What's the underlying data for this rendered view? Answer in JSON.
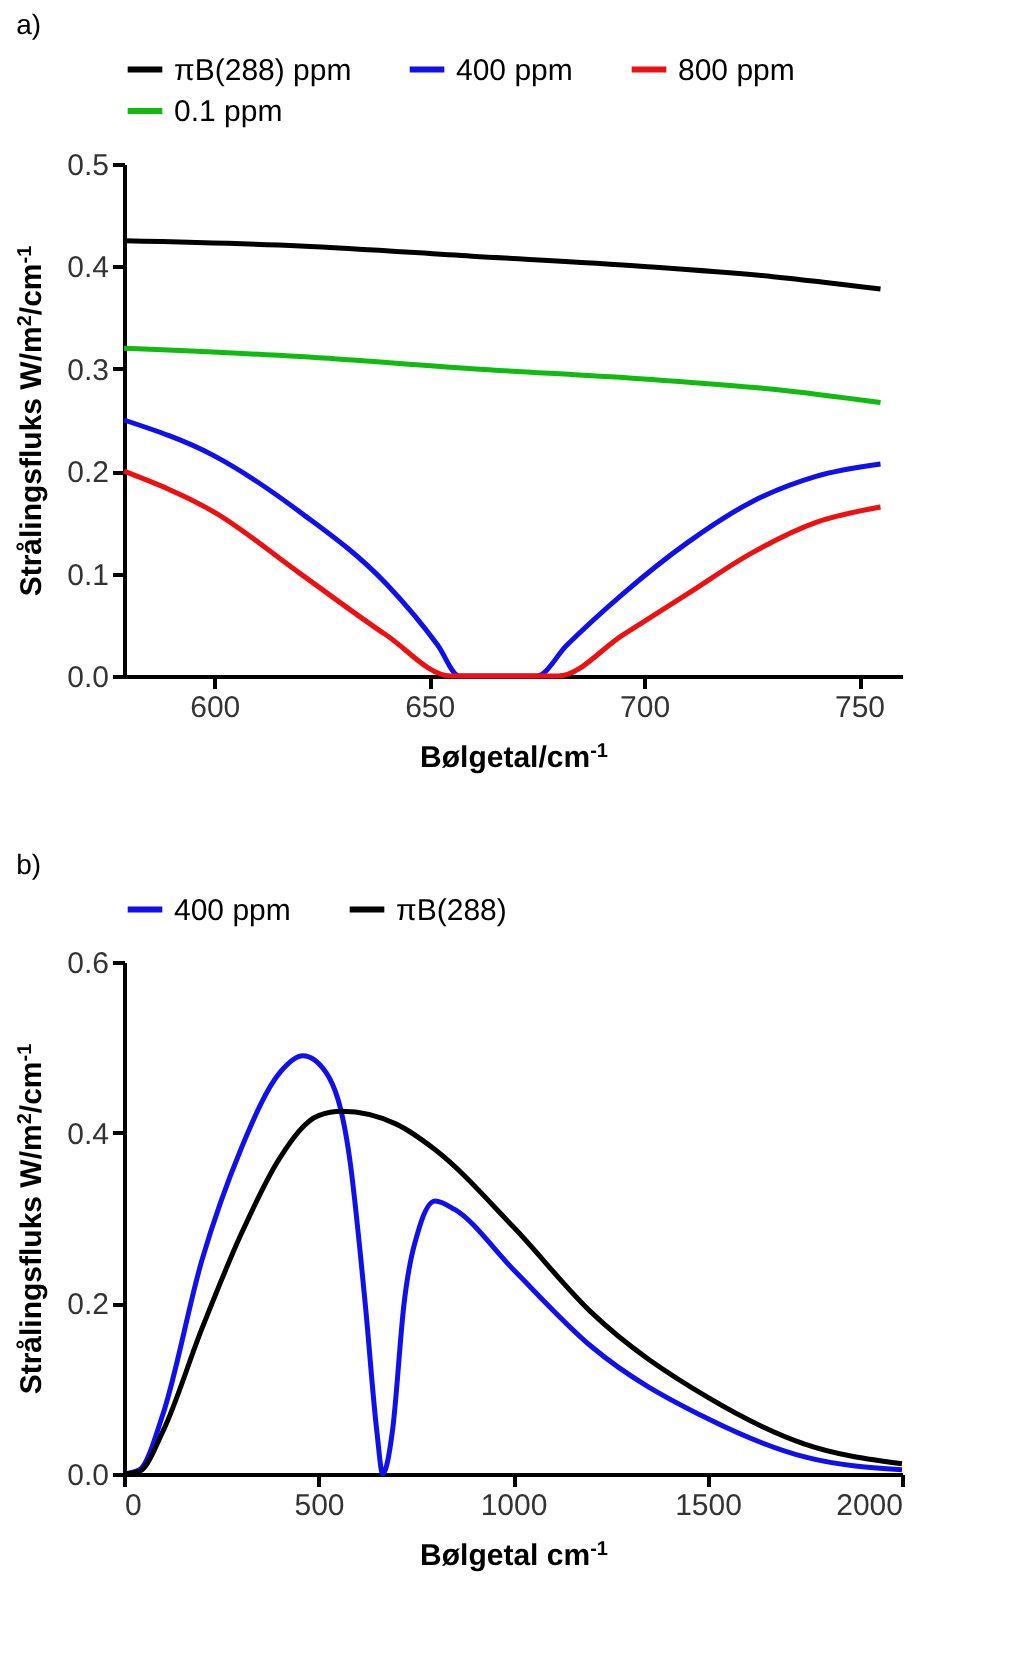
{
  "chart_data": [
    {
      "type": "line",
      "title": "a)",
      "xlabel": "Bølgetal/cm$^{-1}$",
      "ylabel": "Strålingsfluks  W/m$^{2}$/cm$^{-1}$",
      "xlim": [
        579,
        760
      ],
      "xticks": [
        600,
        650,
        700,
        750
      ],
      "ylim": [
        0,
        0.5
      ],
      "yticks": [
        {
          "value": 0,
          "label": "0.0"
        },
        0.1,
        0.2,
        0.3,
        0.4,
        0.5
      ],
      "legend": "top",
      "series": [
        {
          "name": "πB(288) ppm",
          "color": "#000000",
          "x": [
            579,
            620,
            660,
            700,
            730,
            755
          ],
          "values": [
            0.425,
            0.42,
            0.41,
            0.4,
            0.39,
            0.378
          ]
        },
        {
          "name": "400 ppm",
          "color": "#1010ee",
          "x": [
            579,
            600,
            620,
            640,
            652,
            657,
            675,
            682,
            695,
            710,
            725,
            740,
            755
          ],
          "values": [
            0.25,
            0.215,
            0.16,
            0.09,
            0.03,
            0,
            0,
            0.03,
            0.08,
            0.13,
            0.17,
            0.195,
            0.207
          ]
        },
        {
          "name": "800 ppm",
          "color": "#ee1010",
          "x": [
            579,
            600,
            620,
            640,
            655,
            680,
            695,
            710,
            725,
            740,
            755
          ],
          "values": [
            0.2,
            0.16,
            0.1,
            0.04,
            0,
            0,
            0.04,
            0.08,
            0.12,
            0.15,
            0.165
          ]
        },
        {
          "name": "0.1 ppm",
          "color": "#10bb10",
          "x": [
            579,
            620,
            660,
            700,
            730,
            755
          ],
          "values": [
            0.32,
            0.312,
            0.3,
            0.29,
            0.28,
            0.267
          ]
        }
      ]
    },
    {
      "type": "line",
      "title": "b)",
      "xlabel": "Bølgetal cm$^{-1}$",
      "ylabel": "Strålingsfluks  W/m$^{2}$/cm$^{-1}$",
      "xlim": [
        0,
        2000
      ],
      "xticks": [
        0,
        500,
        1000,
        1500,
        2000
      ],
      "ylim": [
        0,
        0.6
      ],
      "yticks": [
        {
          "value": 0,
          "label": "0.0"
        },
        0.2,
        0.4,
        0.6
      ],
      "legend": "top",
      "series": [
        {
          "name": "400 ppm",
          "color": "#1010ee",
          "x": [
            0,
            40,
            100,
            200,
            300,
            400,
            460,
            520,
            580,
            620,
            650,
            665,
            690,
            720,
            760,
            800,
            850,
            1000,
            1200,
            1500,
            1750,
            2000
          ],
          "values": [
            0,
            0.005,
            0.07,
            0.25,
            0.38,
            0.47,
            0.49,
            0.47,
            0.37,
            0.2,
            0.05,
            0,
            0.05,
            0.2,
            0.29,
            0.32,
            0.31,
            0.24,
            0.15,
            0.065,
            0.02,
            0.005
          ]
        },
        {
          "name": "πB(288)",
          "color": "#000000",
          "x": [
            0,
            40,
            100,
            200,
            300,
            400,
            500,
            560,
            700,
            800,
            1000,
            1200,
            1500,
            1750,
            2000
          ],
          "values": [
            0,
            0.003,
            0.05,
            0.17,
            0.28,
            0.37,
            0.42,
            0.425,
            0.41,
            0.38,
            0.29,
            0.19,
            0.09,
            0.035,
            0.012
          ]
        }
      ]
    }
  ]
}
